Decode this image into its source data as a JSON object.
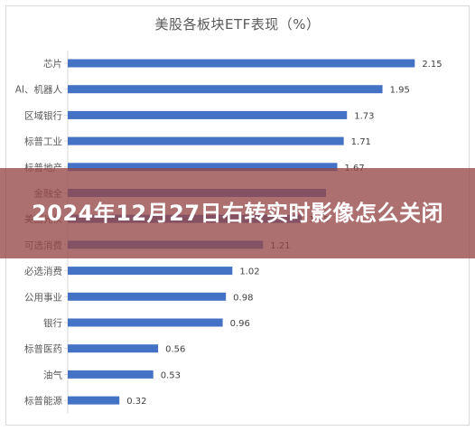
{
  "chart_data": {
    "type": "bar",
    "orientation": "horizontal",
    "title": "美股各板块ETF表现（%）",
    "categories": [
      "芯片",
      "AI、机器人",
      "区域银行",
      "标普工业",
      "标普地产",
      "金融全",
      "美国光伏",
      "可选消费",
      "必选消费",
      "公用事业",
      "银行",
      "标普医药",
      "油气",
      "标普能源"
    ],
    "values": [
      2.15,
      1.95,
      1.73,
      1.71,
      1.67,
      1.6,
      1.45,
      1.21,
      1.02,
      0.98,
      0.96,
      0.56,
      0.53,
      0.32
    ],
    "value_labels": [
      "2.15",
      "1.95",
      "1.73",
      "1.71",
      "1.67",
      "",
      "1.45",
      "1.21",
      "1.02",
      "0.98",
      "0.96",
      "0.56",
      "0.53",
      "0.32"
    ],
    "xlim": [
      0,
      2.4
    ],
    "grid": false,
    "legend": "none",
    "bar_color": "#4472c4"
  },
  "overlay": {
    "headline": "2024年12月27日右转实时影像怎么关闭"
  }
}
